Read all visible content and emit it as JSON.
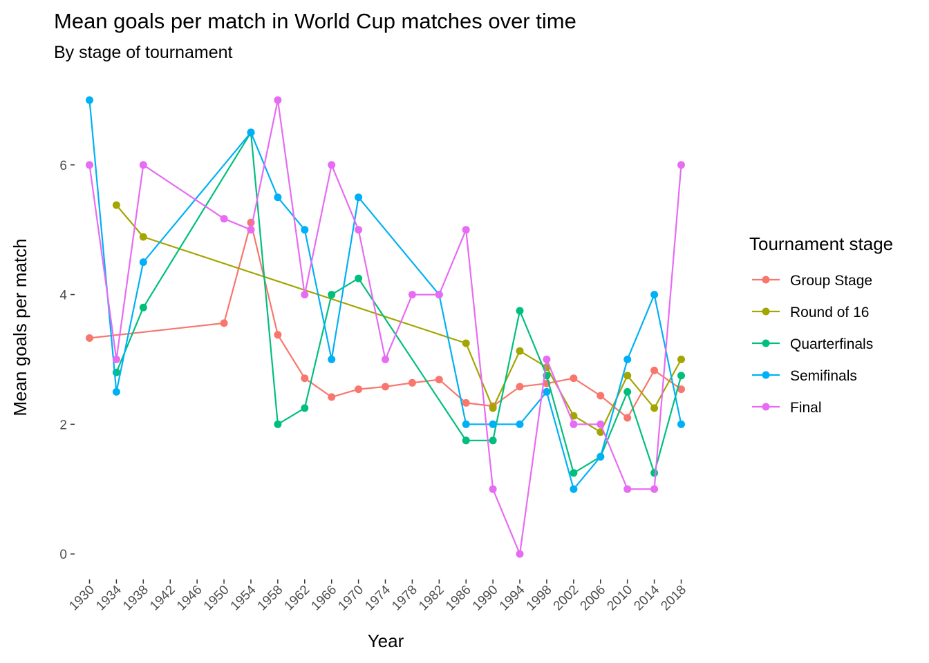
{
  "chart_data": {
    "type": "line",
    "title": "Mean goals per match in World Cup matches over time",
    "subtitle": "By stage of tournament",
    "xlabel": "Year",
    "ylabel": "Mean goals per match",
    "x_ticks": [
      1930,
      1934,
      1938,
      1942,
      1946,
      1950,
      1954,
      1958,
      1962,
      1966,
      1970,
      1974,
      1978,
      1982,
      1986,
      1990,
      1994,
      1998,
      2002,
      2006,
      2010,
      2014,
      2018
    ],
    "xlim": [
      1928.2,
      2019.8
    ],
    "y_ticks": [
      0,
      2,
      4,
      6
    ],
    "ylim": [
      -0.35,
      7.35
    ],
    "grid": false,
    "legend": {
      "title": "Tournament stage",
      "position": "right"
    },
    "series": [
      {
        "name": "Group Stage",
        "color": "#F8766D",
        "points": [
          [
            1930,
            3.33
          ],
          [
            1950,
            3.56
          ],
          [
            1954,
            5.11
          ],
          [
            1958,
            3.38
          ],
          [
            1962,
            2.71
          ],
          [
            1966,
            2.42
          ],
          [
            1970,
            2.54
          ],
          [
            1974,
            2.58
          ],
          [
            1978,
            2.64
          ],
          [
            1982,
            2.69
          ],
          [
            1986,
            2.33
          ],
          [
            1990,
            2.28
          ],
          [
            1994,
            2.58
          ],
          [
            1998,
            2.63
          ],
          [
            2002,
            2.71
          ],
          [
            2006,
            2.44
          ],
          [
            2010,
            2.1
          ],
          [
            2014,
            2.83
          ],
          [
            2018,
            2.54
          ]
        ]
      },
      {
        "name": "Round of 16",
        "color": "#A3A500",
        "points": [
          [
            1934,
            5.38
          ],
          [
            1938,
            4.89
          ],
          [
            1986,
            3.25
          ],
          [
            1990,
            2.25
          ],
          [
            1994,
            3.13
          ],
          [
            1998,
            2.88
          ],
          [
            2002,
            2.13
          ],
          [
            2006,
            1.88
          ],
          [
            2010,
            2.75
          ],
          [
            2014,
            2.25
          ],
          [
            2018,
            3.0
          ]
        ]
      },
      {
        "name": "Quarterfinals",
        "color": "#00BF7D",
        "points": [
          [
            1934,
            2.8
          ],
          [
            1938,
            3.8
          ],
          [
            1954,
            6.5
          ],
          [
            1958,
            2.0
          ],
          [
            1962,
            2.25
          ],
          [
            1966,
            4.0
          ],
          [
            1970,
            4.25
          ],
          [
            1986,
            1.75
          ],
          [
            1990,
            1.75
          ],
          [
            1994,
            3.75
          ],
          [
            1998,
            2.75
          ],
          [
            2002,
            1.25
          ],
          [
            2006,
            1.5
          ],
          [
            2010,
            2.5
          ],
          [
            2014,
            1.25
          ],
          [
            2018,
            2.75
          ]
        ]
      },
      {
        "name": "Semifinals",
        "color": "#00B0F6",
        "points": [
          [
            1930,
            7.0
          ],
          [
            1934,
            2.5
          ],
          [
            1938,
            4.5
          ],
          [
            1954,
            6.5
          ],
          [
            1958,
            5.5
          ],
          [
            1962,
            5.0
          ],
          [
            1966,
            3.0
          ],
          [
            1970,
            5.5
          ],
          [
            1982,
            4.0
          ],
          [
            1986,
            2.0
          ],
          [
            1990,
            2.0
          ],
          [
            1994,
            2.0
          ],
          [
            1998,
            2.5
          ],
          [
            2002,
            1.0
          ],
          [
            2006,
            1.5
          ],
          [
            2010,
            3.0
          ],
          [
            2014,
            4.0
          ],
          [
            2018,
            2.0
          ]
        ]
      },
      {
        "name": "Final",
        "color": "#E76BF3",
        "points": [
          [
            1930,
            6.0
          ],
          [
            1934,
            3.0
          ],
          [
            1938,
            6.0
          ],
          [
            1950,
            5.17
          ],
          [
            1954,
            5.0
          ],
          [
            1958,
            7.0
          ],
          [
            1962,
            4.0
          ],
          [
            1966,
            6.0
          ],
          [
            1970,
            5.0
          ],
          [
            1974,
            3.0
          ],
          [
            1978,
            4.0
          ],
          [
            1982,
            4.0
          ],
          [
            1986,
            5.0
          ],
          [
            1990,
            1.0
          ],
          [
            1994,
            0.0
          ],
          [
            1998,
            3.0
          ],
          [
            2002,
            2.0
          ],
          [
            2006,
            2.0
          ],
          [
            2010,
            1.0
          ],
          [
            2014,
            1.0
          ],
          [
            2018,
            6.0
          ]
        ]
      }
    ]
  }
}
